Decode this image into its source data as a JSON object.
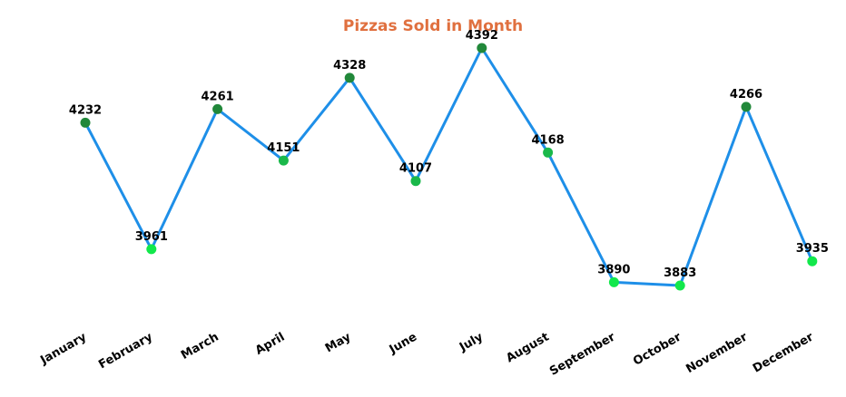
{
  "chart_data": {
    "type": "line",
    "title": "Pizzas Sold in Month",
    "categories": [
      "January",
      "February",
      "March",
      "April",
      "May",
      "June",
      "July",
      "August",
      "September",
      "October",
      "November",
      "December"
    ],
    "series": [
      {
        "values": [
          4232,
          3961,
          4261,
          4151,
          4328,
          4107,
          4392,
          4168,
          3890,
          3883,
          4266,
          3935
        ]
      }
    ],
    "xlabel": "",
    "ylabel": "",
    "ylim": [
      3800,
      4420
    ],
    "grid": false,
    "legend": "none",
    "data_labels": true
  },
  "colors": {
    "title": "#E0703F",
    "line": "#1E8FE8",
    "marker_high": "#21883A",
    "marker_mid": "#1AB84A",
    "marker_low": "#12E84B"
  }
}
